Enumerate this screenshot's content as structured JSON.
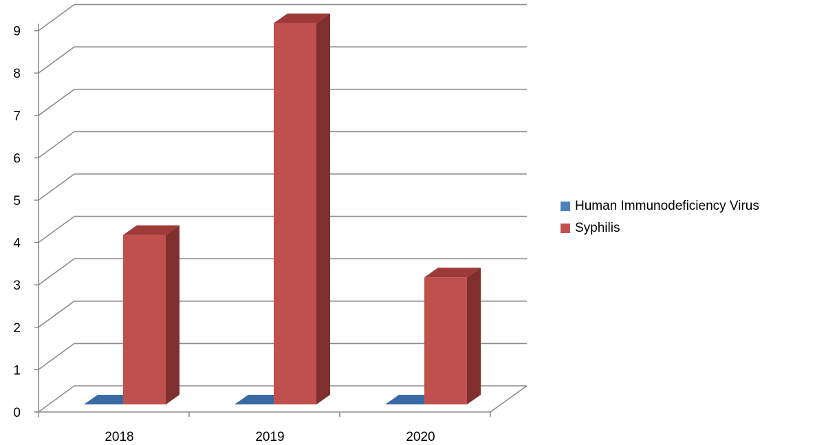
{
  "chart_data": {
    "type": "bar",
    "categories": [
      "2018",
      "2019",
      "2020"
    ],
    "series": [
      {
        "name": "Human Immunodeficiency Virus",
        "values": [
          0,
          0,
          0
        ],
        "color": "#4F81BD",
        "side_color": "#2E5A8C",
        "top_color": "#3A6AA3"
      },
      {
        "name": "Syphilis",
        "values": [
          4,
          9,
          3
        ],
        "color": "#C0504D",
        "side_color": "#7F2F2E",
        "top_color": "#9E3A37"
      }
    ],
    "ylim": [
      0,
      9
    ],
    "yticks": [
      "0",
      "1",
      "2",
      "3",
      "4",
      "5",
      "6",
      "7",
      "8",
      "9"
    ],
    "grid": true,
    "legend_position": "right",
    "style": "3d-column"
  }
}
